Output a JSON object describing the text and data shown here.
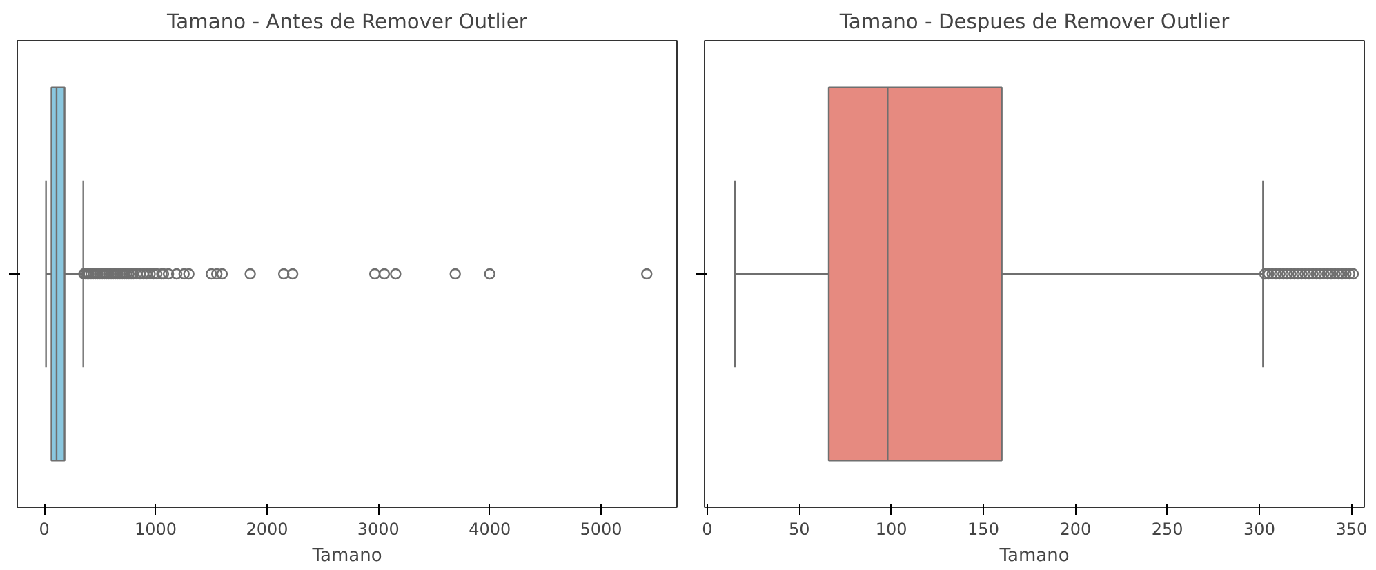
{
  "chart_data": [
    {
      "type": "box",
      "title": "Tamano - Antes de Remover Outlier",
      "xlabel": "Tamano",
      "orientation": "horizontal",
      "categories": [
        null
      ],
      "color": "#8ac7df",
      "tick_labels": "x",
      "grid": false,
      "xlim": [
        -243,
        5681
      ],
      "xticks": [
        0,
        1000,
        2000,
        3000,
        4000,
        5000
      ],
      "boxes": [
        {
          "low": 15,
          "q1": 64,
          "median": 110,
          "q3": 182,
          "high": 350,
          "outliers": [
            355,
            370,
            385,
            400,
            420,
            440,
            460,
            480,
            500,
            520,
            540,
            560,
            580,
            600,
            620,
            640,
            660,
            680,
            700,
            720,
            740,
            760,
            780,
            800,
            830,
            860,
            890,
            920,
            950,
            980,
            1010,
            1055,
            1070,
            1115,
            1189,
            1255,
            1298,
            1500,
            1549,
            1597,
            1849,
            2150,
            2230,
            2968,
            3053,
            3155,
            3690,
            4000,
            5410
          ]
        }
      ]
    },
    {
      "type": "box",
      "title": "Tamano - Despues de Remover Outlier",
      "xlabel": "Tamano",
      "orientation": "horizontal",
      "categories": [
        null
      ],
      "color": "#e68a80",
      "tick_labels": "x",
      "grid": false,
      "xlim": [
        -1.5,
        357
      ],
      "xticks": [
        0,
        50,
        100,
        150,
        200,
        250,
        300,
        350
      ],
      "boxes": [
        {
          "low": 15,
          "q1": 66,
          "median": 98,
          "q3": 160,
          "high": 302,
          "outliers": [
            303,
            305,
            307,
            309,
            311,
            313,
            315,
            317,
            319,
            321,
            323,
            325,
            327,
            329,
            331,
            333,
            335,
            337,
            339,
            341,
            343,
            345,
            347,
            349,
            351
          ]
        }
      ]
    }
  ]
}
